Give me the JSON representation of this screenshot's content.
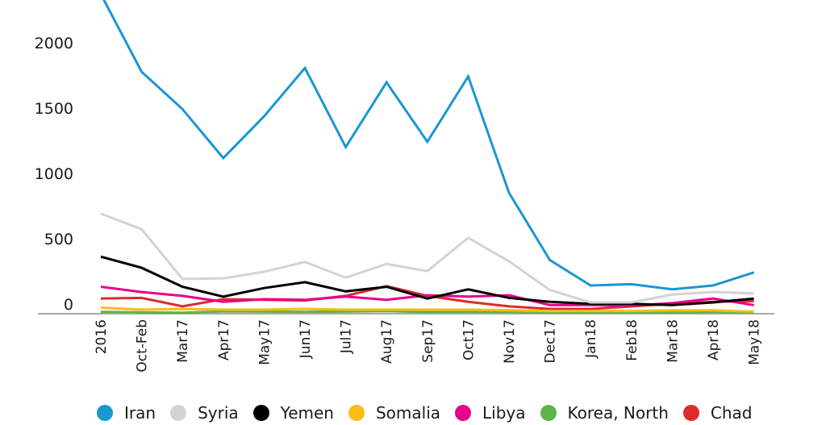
{
  "chart_data": {
    "type": "line",
    "title": "",
    "xlabel": "",
    "ylabel": "",
    "ylim": [
      0,
      2400
    ],
    "yticks": [
      0,
      500,
      1000,
      1500,
      2000
    ],
    "grid": false,
    "legend_position": "bottom",
    "categories": [
      "2016",
      "Oct-Feb",
      "Mar17",
      "Apr17",
      "May17",
      "Jun17",
      "Jul17",
      "Aug17",
      "Sep17",
      "Oct17",
      "Nov17",
      "Dec17",
      "Jan18",
      "Feb18",
      "Mar18",
      "Apr18",
      "May18"
    ],
    "series": [
      {
        "name": "Iran",
        "color": "#1b96d3",
        "values": [
          2440,
          1845,
          1560,
          1185,
          1505,
          1875,
          1270,
          1765,
          1310,
          1810,
          920,
          405,
          210,
          220,
          180,
          210,
          310
        ]
      },
      {
        "name": "Syria",
        "color": "#d3d3d3",
        "values": [
          760,
          640,
          260,
          265,
          315,
          390,
          270,
          375,
          320,
          575,
          395,
          175,
          80,
          80,
          140,
          160,
          150
        ]
      },
      {
        "name": "Yemen",
        "color": "#000000",
        "values": [
          430,
          345,
          200,
          125,
          190,
          235,
          165,
          200,
          110,
          180,
          115,
          85,
          70,
          70,
          60,
          80,
          110
        ]
      },
      {
        "name": "Somalia",
        "color": "#fbbc15",
        "values": [
          40,
          25,
          30,
          25,
          25,
          30,
          25,
          25,
          25,
          25,
          20,
          15,
          15,
          15,
          20,
          20,
          10
        ]
      },
      {
        "name": "Libya",
        "color": "#e8008a",
        "values": [
          200,
          160,
          130,
          85,
          105,
          100,
          125,
          100,
          135,
          125,
          135,
          60,
          60,
          55,
          75,
          110,
          60
        ]
      },
      {
        "name": "Korea, North",
        "color": "#5bb54a",
        "values": [
          8,
          5,
          2,
          12,
          10,
          8,
          10,
          14,
          6,
          8,
          6,
          5,
          5,
          5,
          5,
          6,
          5
        ]
      },
      {
        "name": "Chad",
        "color": "#dd2b2b",
        "values": [
          110,
          115,
          50,
          105,
          100,
          95,
          130,
          205,
          130,
          85,
          50,
          30,
          30,
          50,
          70,
          85,
          90
        ]
      }
    ]
  },
  "legend": {
    "items": [
      {
        "label": "Iran",
        "color": "#1b96d3"
      },
      {
        "label": "Syria",
        "color": "#d3d3d3"
      },
      {
        "label": "Yemen",
        "color": "#000000"
      },
      {
        "label": "Somalia",
        "color": "#fbbc15"
      },
      {
        "label": "Libya",
        "color": "#e8008a"
      },
      {
        "label": "Korea, North",
        "color": "#5bb54a"
      },
      {
        "label": "Chad",
        "color": "#dd2b2b"
      }
    ]
  },
  "axis": {
    "color": "#aaaaaa"
  }
}
